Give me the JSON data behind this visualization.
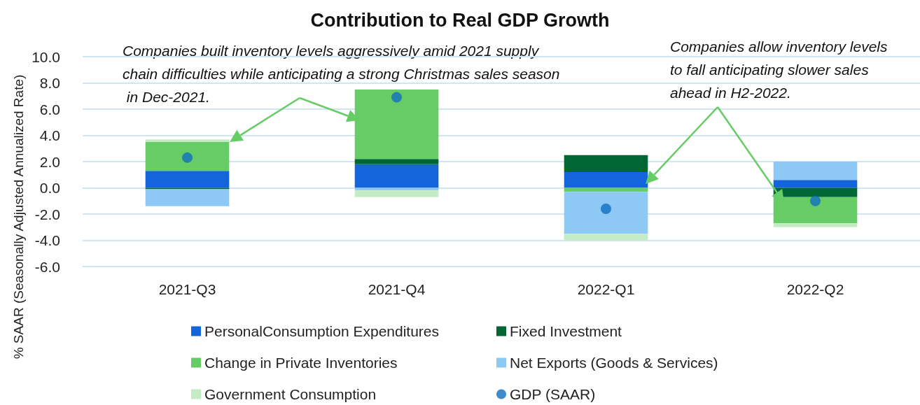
{
  "chart_data": {
    "type": "bar",
    "title": "Contribution to Real GDP Growth",
    "ylabel": "% SAAR (Seasonally Adjusted Annualized Rate)",
    "categories": [
      "2021-Q3",
      "2021-Q4",
      "2022-Q1",
      "2022-Q2"
    ],
    "stacked": true,
    "series": [
      {
        "name": "PersonalConsumption Expenditures",
        "color": "#1464dc",
        "values": [
          1.3,
          1.8,
          1.2,
          0.6
        ]
      },
      {
        "name": "Fixed Investment",
        "color": "#006633",
        "values": [
          -0.1,
          0.4,
          1.3,
          -0.7
        ]
      },
      {
        "name": "Change in Private Inventories",
        "color": "#66cc66",
        "values": [
          2.2,
          5.3,
          -0.3,
          -2.0
        ]
      },
      {
        "name": "Net Exports (Goods & Services)",
        "color": "#8ec8f4",
        "values": [
          -1.3,
          -0.2,
          -3.2,
          1.4
        ]
      },
      {
        "name": "Government Consumption",
        "color": "#c4ecc4",
        "values": [
          0.2,
          -0.5,
          -0.5,
          -0.3
        ]
      },
      {
        "name": "GDP (SAAR)",
        "type": "scatter",
        "color": "#0f6fbf",
        "values": [
          2.3,
          6.9,
          -1.6,
          -1.0
        ]
      }
    ],
    "ylim": [
      -6,
      10
    ],
    "yticks": [
      {
        "value": -6,
        "label": "-6.0"
      },
      {
        "value": -4,
        "label": "-4.0"
      },
      {
        "value": -2,
        "label": "-2.0"
      },
      {
        "value": 0,
        "label": "0.0"
      },
      {
        "value": 2,
        "label": "2.0"
      },
      {
        "value": 4,
        "label": "4.0"
      },
      {
        "value": 6,
        "label": "6.0"
      },
      {
        "value": 8,
        "label": "8.0"
      },
      {
        "value": 10,
        "label": "10.0"
      }
    ],
    "grid": "y",
    "legend": "bottom",
    "marker": "circle",
    "annotations": [
      "Companies built inventory levels aggressively amid 2021 supply chain difficulties while anticipating a strong Christmas sales season in Dec-2021.",
      "Companies allow inventory levels to fall anticipating slower sales ahead in H2-2022."
    ]
  }
}
